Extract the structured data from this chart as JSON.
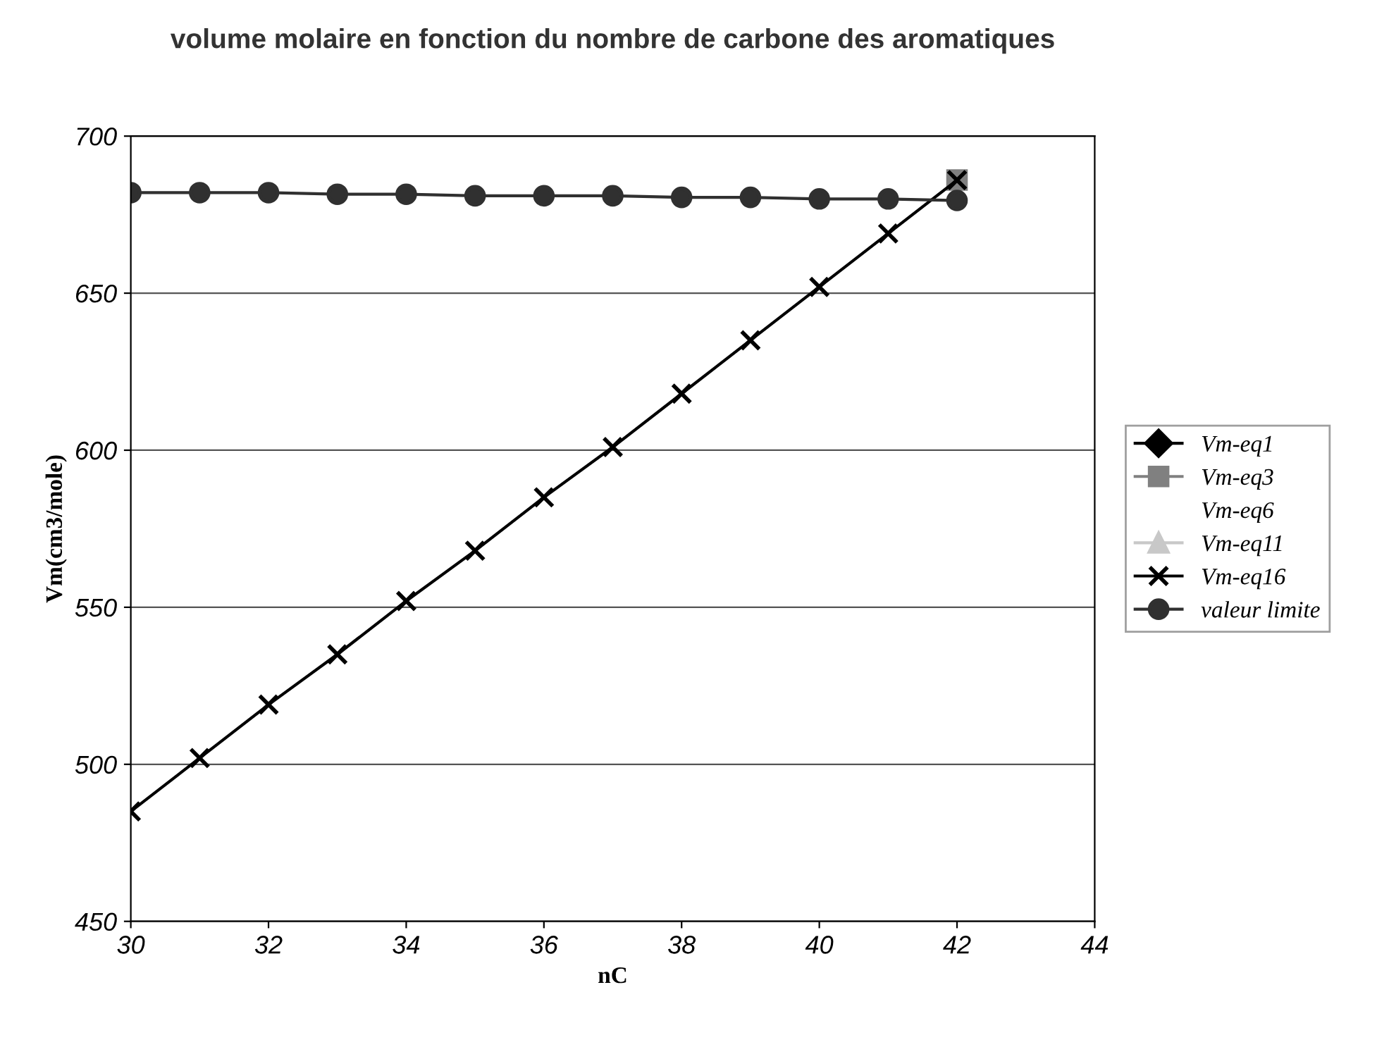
{
  "chart_data": {
    "type": "line",
    "title": "volume molaire en fonction du nombre de carbone des aromatiques",
    "xlabel": "nC",
    "ylabel": "Vm(cm3/mole)",
    "x": [
      30,
      31,
      32,
      33,
      34,
      35,
      36,
      37,
      38,
      39,
      40,
      41,
      42
    ],
    "xlim": [
      30,
      44
    ],
    "xticks": [
      30,
      32,
      34,
      36,
      38,
      40,
      42,
      44
    ],
    "ylim": [
      450,
      700
    ],
    "yticks": [
      450,
      500,
      550,
      600,
      650,
      700
    ],
    "grid": "y",
    "legend": "right",
    "series": [
      {
        "name": "Vm-eq1",
        "color": "#000000",
        "marker": "diamond",
        "values": [
          null,
          null,
          null,
          null,
          null,
          null,
          null,
          null,
          null,
          null,
          null,
          null,
          null
        ]
      },
      {
        "name": "Vm-eq3",
        "color": "#808080",
        "marker": "square",
        "values": [
          null,
          null,
          null,
          null,
          null,
          null,
          null,
          null,
          null,
          null,
          null,
          null,
          686
        ]
      },
      {
        "name": "Vm-eq6",
        "marker": "none",
        "values": [
          null,
          null,
          null,
          null,
          null,
          null,
          null,
          null,
          null,
          null,
          null,
          null,
          null
        ]
      },
      {
        "name": "Vm-eq11",
        "color": "#c8c8c8",
        "marker": "triangle",
        "values": [
          null,
          null,
          null,
          null,
          null,
          null,
          null,
          null,
          null,
          null,
          null,
          null,
          null
        ]
      },
      {
        "name": "Vm-eq16",
        "color": "#000000",
        "marker": "cross",
        "values": [
          485,
          502,
          519,
          535,
          552,
          568,
          585,
          601,
          618,
          635,
          652,
          669,
          686
        ]
      },
      {
        "name": "valeur limite",
        "color": "#303030",
        "marker": "circle",
        "values": [
          682,
          682,
          682,
          681.5,
          681.5,
          681,
          681,
          681,
          680.5,
          680.5,
          680,
          680,
          679.5
        ]
      }
    ]
  }
}
